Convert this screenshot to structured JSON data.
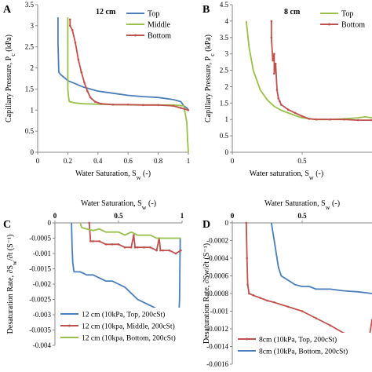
{
  "chart_data": [
    {
      "panel": "A",
      "type": "line",
      "title": "12 cm",
      "xlabel": "Water Saturation, S",
      "xlabel_sub": "w",
      "xlabel_suffix": " (-)",
      "ylabel": "Capillary Pressure, P",
      "ylabel_sub": "c",
      "ylabel_suffix": " (kPa)",
      "xlim": [
        0,
        1
      ],
      "ylim": [
        0,
        3.5
      ],
      "xticks": [
        "0",
        "0.2",
        "0.4",
        "0.6",
        "0.8",
        "1"
      ],
      "xtick_values": [
        0,
        0.2,
        0.4,
        0.6,
        0.8,
        1
      ],
      "yticks": [
        "0",
        "0.5",
        "1",
        "1.5",
        "2",
        "2.5",
        "3",
        "3.5"
      ],
      "ytick_values": [
        0,
        0.5,
        1,
        1.5,
        2,
        2.5,
        3,
        3.5
      ],
      "legend_position": "top-right",
      "series": [
        {
          "name": "Top",
          "color": "#4a7ebb",
          "marker": false,
          "x": [
            0.135,
            0.135,
            0.14,
            0.15,
            0.2,
            0.3,
            0.4,
            0.5,
            0.6,
            0.7,
            0.8,
            0.9,
            0.95,
            0.97,
            0.99,
            1.0
          ],
          "y": [
            3.2,
            2.6,
            1.9,
            1.85,
            1.7,
            1.55,
            1.45,
            1.4,
            1.35,
            1.32,
            1.3,
            1.25,
            1.2,
            1.1,
            1.05,
            1.0
          ]
        },
        {
          "name": "Middle",
          "color": "#98c04a",
          "marker": false,
          "x": [
            0.2,
            0.2,
            0.205,
            0.21,
            0.25,
            0.3,
            0.5,
            0.7,
            0.9,
            0.97,
            0.98,
            0.99,
            0.995,
            1.0
          ],
          "y": [
            3.2,
            1.5,
            1.3,
            1.2,
            1.17,
            1.15,
            1.13,
            1.12,
            1.12,
            1.1,
            0.9,
            0.7,
            0.3,
            0.0
          ]
        },
        {
          "name": "Bottom",
          "color": "#c0504d",
          "marker": true,
          "x": [
            0.215,
            0.215,
            0.23,
            0.25,
            0.27,
            0.29,
            0.31,
            0.33,
            0.35,
            0.38,
            0.42,
            0.5,
            0.6,
            0.7,
            0.8,
            0.9,
            0.95,
            1.0
          ],
          "y": [
            3.15,
            3.0,
            2.9,
            2.6,
            2.2,
            1.9,
            1.65,
            1.45,
            1.3,
            1.2,
            1.15,
            1.13,
            1.13,
            1.12,
            1.12,
            1.1,
            1.05,
            1.0
          ]
        }
      ]
    },
    {
      "panel": "B",
      "type": "line",
      "title": "8 cm",
      "xlabel": "Water saturation, S",
      "xlabel_sub": "w",
      "xlabel_suffix": " (-)",
      "ylabel": "Capillary Pressure, P",
      "ylabel_sub": "c",
      "ylabel_suffix": " (kPa)",
      "xlim": [
        0,
        1
      ],
      "ylim": [
        0,
        4.5
      ],
      "xticks": [
        "0",
        "0.5"
      ],
      "xtick_values": [
        0,
        0.5
      ],
      "yticks": [
        "0",
        "0.5",
        "1",
        "1.5",
        "2",
        "2.5",
        "3",
        "3.5",
        "4",
        "4.5"
      ],
      "ytick_values": [
        0,
        0.5,
        1,
        1.5,
        2,
        2.5,
        3,
        3.5,
        4,
        4.5
      ],
      "legend_position": "top-right",
      "series": [
        {
          "name": "Top",
          "color": "#98c04a",
          "marker": false,
          "x": [
            0.1,
            0.12,
            0.15,
            0.2,
            0.25,
            0.3,
            0.35,
            0.4,
            0.45,
            0.5,
            0.6,
            0.7,
            0.8,
            0.9,
            0.95,
            1.0
          ],
          "y": [
            4.0,
            3.2,
            2.5,
            1.9,
            1.6,
            1.4,
            1.28,
            1.2,
            1.12,
            1.05,
            1.0,
            1.0,
            1.02,
            1.05,
            1.08,
            1.05
          ]
        },
        {
          "name": "Bottom",
          "color": "#c0504d",
          "marker": true,
          "x": [
            0.28,
            0.28,
            0.29,
            0.3,
            0.3,
            0.31,
            0.32,
            0.33,
            0.34,
            0.35,
            0.4,
            0.45,
            0.5,
            0.55,
            0.6,
            0.7,
            0.8,
            0.9,
            1.0
          ],
          "y": [
            4.0,
            3.5,
            2.8,
            3.0,
            2.4,
            2.7,
            1.9,
            1.65,
            1.55,
            1.45,
            1.3,
            1.2,
            1.1,
            1.02,
            1.0,
            1.0,
            1.0,
            0.98,
            0.98
          ]
        }
      ]
    },
    {
      "panel": "C",
      "type": "line",
      "title": "",
      "xlabel": "Water Saturation, S",
      "xlabel_sub": "w",
      "xlabel_suffix": " (-)",
      "ylabel": "Desaturation Rate, ∂S",
      "ylabel_sub": "w",
      "ylabel_suffix": "/∂t (S⁻¹)",
      "xlim": [
        0,
        1
      ],
      "ylim": [
        -0.004,
        0
      ],
      "xticks": [
        "0",
        "0.5",
        "1"
      ],
      "xtick_values": [
        0,
        0.5,
        1
      ],
      "yticks": [
        "0",
        "-0.0005",
        "-0.001",
        "-0.0015",
        "-0.002",
        "-0.0025",
        "-0.003",
        "-0.0035",
        "-0.004"
      ],
      "ytick_values": [
        0,
        -0.0005,
        -0.001,
        -0.0015,
        -0.002,
        -0.0025,
        -0.003,
        -0.0035,
        -0.004
      ],
      "legend_position": "bottom-left",
      "series": [
        {
          "name": "12 cm (10kPa, Top, 200cSt)",
          "color": "#4a7ebb",
          "marker": false,
          "x": [
            0.13,
            0.135,
            0.14,
            0.15,
            0.2,
            0.25,
            0.3,
            0.35,
            0.4,
            0.45,
            0.5,
            0.55,
            0.6,
            0.65,
            0.7,
            0.75,
            0.8,
            0.85,
            0.9,
            0.95,
            0.97,
            0.98,
            0.985
          ],
          "y": [
            0.0,
            -0.0008,
            -0.0013,
            -0.0016,
            -0.0016,
            -0.0017,
            -0.0017,
            -0.0018,
            -0.0019,
            -0.0019,
            -0.002,
            -0.0021,
            -0.0023,
            -0.0025,
            -0.0026,
            -0.0027,
            -0.0028,
            -0.0029,
            -0.003,
            -0.0032,
            -0.0034,
            -0.0025,
            -0.0005
          ]
        },
        {
          "name": "12 cm (10kpa, Middle, 200cSt)",
          "color": "#c0504d",
          "marker": true,
          "x": [
            0.27,
            0.28,
            0.3,
            0.35,
            0.4,
            0.45,
            0.5,
            0.55,
            0.6,
            0.62,
            0.63,
            0.65,
            0.7,
            0.75,
            0.8,
            0.82,
            0.83,
            0.85,
            0.9,
            0.95,
            0.99
          ],
          "y": [
            0.0,
            -0.0006,
            -0.0006,
            -0.0006,
            -0.0007,
            -0.0007,
            -0.0007,
            -0.0008,
            -0.0008,
            -0.0004,
            -0.0008,
            -0.0008,
            -0.0008,
            -0.0008,
            -0.0009,
            -0.0005,
            -0.0009,
            -0.0009,
            -0.0009,
            -0.001,
            -0.0009
          ]
        },
        {
          "name": "12 cm (10kpa, Bottom, 200cSt)",
          "color": "#98c04a",
          "marker": false,
          "x": [
            0.2,
            0.21,
            0.25,
            0.3,
            0.35,
            0.4,
            0.45,
            0.5,
            0.55,
            0.6,
            0.65,
            0.7,
            0.75,
            0.8,
            0.85,
            0.9,
            0.95,
            0.99
          ],
          "y": [
            0.0,
            -0.00015,
            -0.0002,
            -0.00025,
            -0.0002,
            -0.0003,
            -0.0003,
            -0.0003,
            -0.0004,
            -0.0003,
            -0.0004,
            -0.0004,
            -0.0004,
            -0.0005,
            -0.0005,
            -0.0005,
            -0.0005,
            -0.0005
          ]
        }
      ]
    },
    {
      "panel": "D",
      "type": "line",
      "title": "",
      "xlabel": "Water Saturation, S",
      "xlabel_sub": "w",
      "xlabel_suffix": " (-)",
      "ylabel": "Desaturation Rate, ∂Sw/∂t  (S⁻¹)",
      "ylabel_sub": "",
      "ylabel_suffix": "",
      "xlim": [
        0,
        1
      ],
      "ylim": [
        -0.0016,
        0
      ],
      "xticks": [
        "0",
        "0.5"
      ],
      "xtick_values": [
        0,
        0.5
      ],
      "yticks": [
        "0",
        "-0.0002",
        "-0.0004",
        "-0.0006",
        "-0.0008",
        "-0.001",
        "-0.0012",
        "-0.0014",
        "-0.0016"
      ],
      "ytick_values": [
        0,
        -0.0002,
        -0.0004,
        -0.0006,
        -0.0008,
        -0.001,
        -0.0012,
        -0.0014,
        -0.0016
      ],
      "legend_position": "bottom-left",
      "series": [
        {
          "name": "8cm (10kPa, Top, 200cSt)",
          "color": "#c0504d",
          "marker": true,
          "x": [
            0.1,
            0.105,
            0.11,
            0.12,
            0.15,
            0.2,
            0.25,
            0.3,
            0.4,
            0.5,
            0.6,
            0.7,
            0.8,
            0.85,
            0.9,
            0.93,
            0.96,
            0.98,
            1.0
          ],
          "y": [
            0.0,
            -0.0004,
            -0.0007,
            -0.0008,
            -0.00082,
            -0.00085,
            -0.00088,
            -0.0009,
            -0.00095,
            -0.001,
            -0.00108,
            -0.00116,
            -0.00125,
            -0.0013,
            -0.00135,
            -0.0014,
            -0.00138,
            -0.0013,
            -0.0011
          ]
        },
        {
          "name": "8cm (10kPa, Bottom, 200cSt)",
          "color": "#4a7ebb",
          "marker": false,
          "x": [
            0.28,
            0.285,
            0.29,
            0.3,
            0.31,
            0.33,
            0.35,
            0.4,
            0.45,
            0.5,
            0.55,
            0.6,
            0.7,
            0.8,
            0.9,
            1.0
          ],
          "y": [
            0.0,
            -5e-05,
            -0.0001,
            -0.0002,
            -0.0003,
            -0.0005,
            -0.0006,
            -0.00065,
            -0.0007,
            -0.00072,
            -0.00072,
            -0.00075,
            -0.00075,
            -0.00077,
            -0.00078,
            -0.0008
          ]
        }
      ]
    }
  ]
}
